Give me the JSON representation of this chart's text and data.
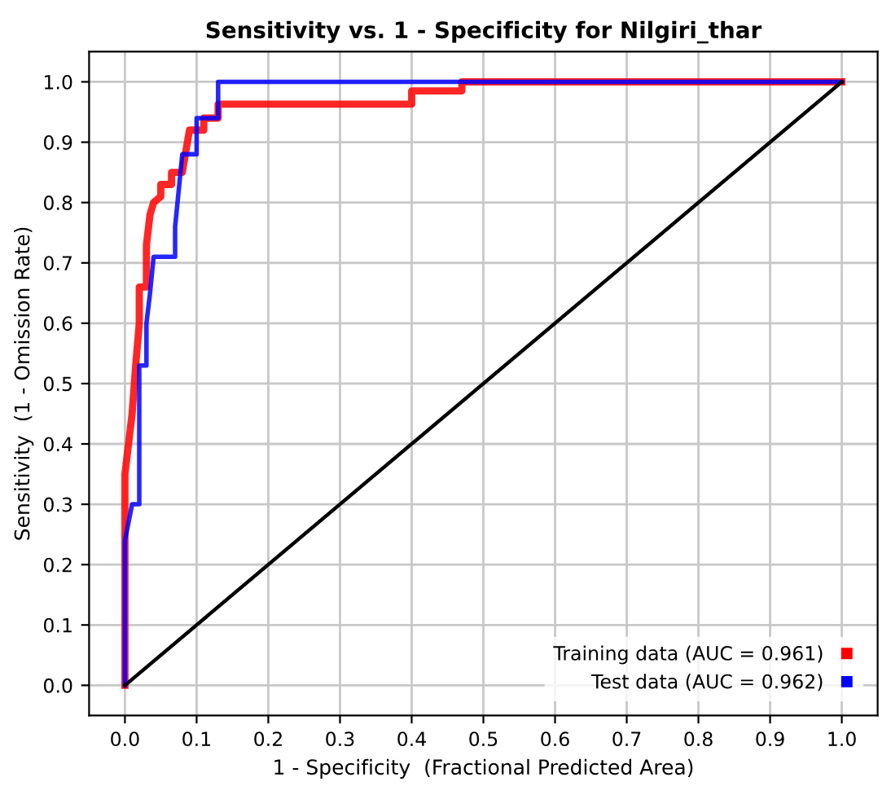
{
  "chart_data": {
    "type": "line",
    "title": "Sensitivity vs. 1 - Specificity for Nilgiri_thar",
    "xlabel": "1 - Specificity  (Fractional Predicted Area)",
    "ylabel": "Sensitivity  (1 - Omission Rate)",
    "xlim": [
      -0.05,
      1.05
    ],
    "ylim": [
      -0.05,
      1.05
    ],
    "xticks": [
      {
        "value": 0,
        "label": "0.0"
      },
      0.1,
      0.2,
      0.3,
      0.4,
      0.5,
      0.6,
      0.7,
      0.8,
      0.9,
      {
        "value": 1,
        "label": "1.0"
      }
    ],
    "yticks": [
      {
        "value": 0,
        "label": "0.0"
      },
      0.1,
      0.2,
      0.3,
      0.4,
      0.5,
      0.6,
      0.7,
      0.8,
      0.9,
      {
        "value": 1,
        "label": "1.0"
      }
    ],
    "grid": true,
    "legend": "bottom right",
    "marker": "none",
    "line_style": "solid",
    "series": [
      {
        "name": "Training data (AUC = 0.961)",
        "color": "#ff0000",
        "x": [
          0,
          0,
          0.01,
          0.015,
          0.02,
          0.02,
          0.03,
          0.03,
          0.035,
          0.04,
          0.05,
          0.05,
          0.065,
          0.065,
          0.08,
          0.09,
          0.11,
          0.11,
          0.13,
          0.13,
          0.4,
          0.4,
          0.47,
          0.47,
          1
        ],
        "values": [
          0,
          0.35,
          0.45,
          0.53,
          0.6,
          0.66,
          0.66,
          0.73,
          0.78,
          0.8,
          0.81,
          0.83,
          0.83,
          0.85,
          0.85,
          0.92,
          0.92,
          0.94,
          0.94,
          0.963,
          0.963,
          0.985,
          0.985,
          1,
          1
        ]
      },
      {
        "name": "Test data (AUC = 0.962)",
        "color": "#0000ff",
        "x": [
          0,
          0,
          0.01,
          0.02,
          0.02,
          0.03,
          0.03,
          0.035,
          0.04,
          0.07,
          0.07,
          0.08,
          0.1,
          0.1,
          0.13,
          0.13,
          1
        ],
        "values": [
          0,
          0.24,
          0.3,
          0.3,
          0.53,
          0.53,
          0.6,
          0.65,
          0.71,
          0.71,
          0.76,
          0.88,
          0.88,
          0.94,
          0.94,
          1,
          1
        ]
      },
      {
        "color": "#000000",
        "x": [
          0,
          1
        ],
        "values": [
          0,
          1
        ]
      }
    ]
  }
}
